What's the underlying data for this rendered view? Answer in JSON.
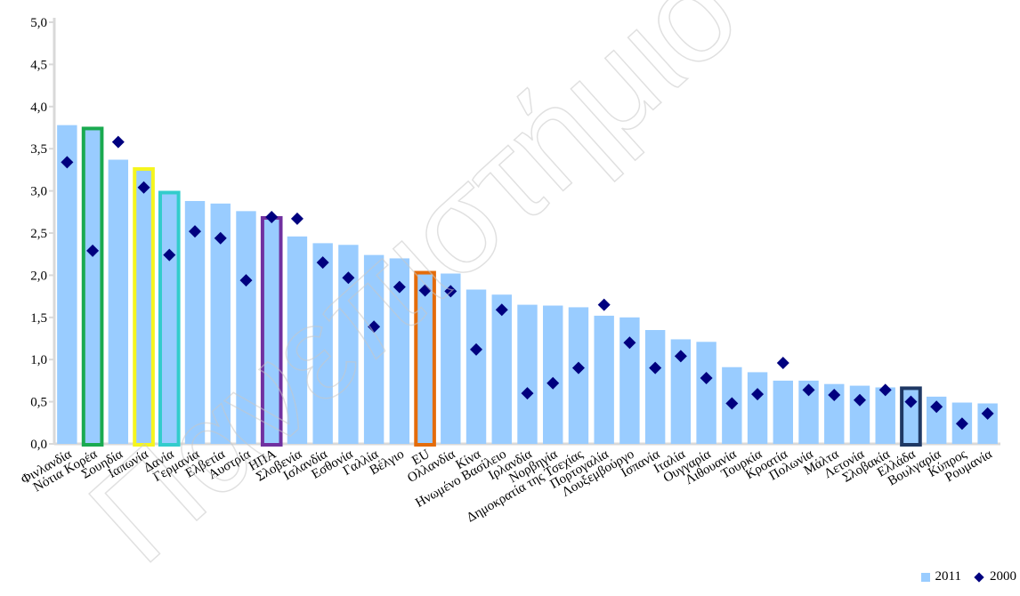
{
  "chart_data": {
    "type": "bar",
    "ylim": [
      0,
      5
    ],
    "yticks": [
      "0,0",
      "0,5",
      "1,0",
      "1,5",
      "2,0",
      "2,5",
      "3,0",
      "3,5",
      "4,0",
      "4,5",
      "5,0"
    ],
    "grid": false,
    "legend_position": "bottom-right",
    "categories": [
      "Φινλανδία",
      "Νότια Κορέα",
      "Σουηδία",
      "Ιαπωνία",
      "Δανία",
      "Γερμανία",
      "Ελβετία",
      "Αυστρία",
      "ΗΠΑ",
      "Σλοβενία",
      "Ισλανδία",
      "Εσθονία",
      "Γαλλία",
      "Βέλγιο",
      "EU",
      "Ολλανδία",
      "Κίνα",
      "Ηνωμένο Βασίλειο",
      "Ιρλανδία",
      "Νορβηγία",
      "Δημοκρατία της Τσεχίας",
      "Πορτογαλία",
      "Λουξεμβούργο",
      "Ισπανία",
      "Ιταλία",
      "Ουγγαρία",
      "Λιθουανία",
      "Τουρκία",
      "Κροατία",
      "Πολωνία",
      "Μάλτα",
      "Λετονία",
      "Σλοβακία",
      "Ελλάδα",
      "Βουλγαρία",
      "Κύπρος",
      "Ρουμανία"
    ],
    "series": [
      {
        "name": "2011",
        "kind": "bar",
        "color": "#99CCFF",
        "values": [
          3.78,
          3.74,
          3.37,
          3.26,
          2.98,
          2.88,
          2.85,
          2.76,
          2.68,
          2.46,
          2.38,
          2.36,
          2.24,
          2.2,
          2.03,
          2.02,
          1.83,
          1.77,
          1.65,
          1.64,
          1.62,
          1.52,
          1.5,
          1.35,
          1.24,
          1.21,
          0.91,
          0.85,
          0.75,
          0.75,
          0.71,
          0.69,
          0.67,
          0.66,
          0.56,
          0.49,
          0.48
        ]
      },
      {
        "name": "2000",
        "kind": "marker",
        "color": "#00007F",
        "values": [
          3.34,
          2.29,
          3.58,
          3.04,
          2.24,
          2.52,
          2.44,
          1.94,
          2.69,
          2.67,
          2.15,
          1.97,
          1.39,
          1.86,
          1.82,
          1.81,
          1.12,
          1.59,
          0.6,
          0.72,
          0.9,
          1.65,
          1.2,
          0.9,
          1.04,
          0.78,
          0.48,
          0.59,
          0.96,
          0.64,
          0.58,
          0.52,
          0.64,
          0.5,
          0.44,
          0.24,
          0.36
        ]
      }
    ],
    "highlights": [
      {
        "category": "Νότια Κορέα",
        "color": "#1AAA50"
      },
      {
        "category": "Ιαπωνία",
        "color": "#F5F51E"
      },
      {
        "category": "Δανία",
        "color": "#33CCCC"
      },
      {
        "category": "ΗΠΑ",
        "color": "#7030A0"
      },
      {
        "category": "EU",
        "color": "#E46C0A"
      },
      {
        "category": "Ελλάδα",
        "color": "#1F3864"
      }
    ]
  },
  "legend": {
    "bar_label": "2011",
    "marker_label": "2000"
  },
  "watermark_text": "Πανεπιστήμιο Πειραιώς"
}
